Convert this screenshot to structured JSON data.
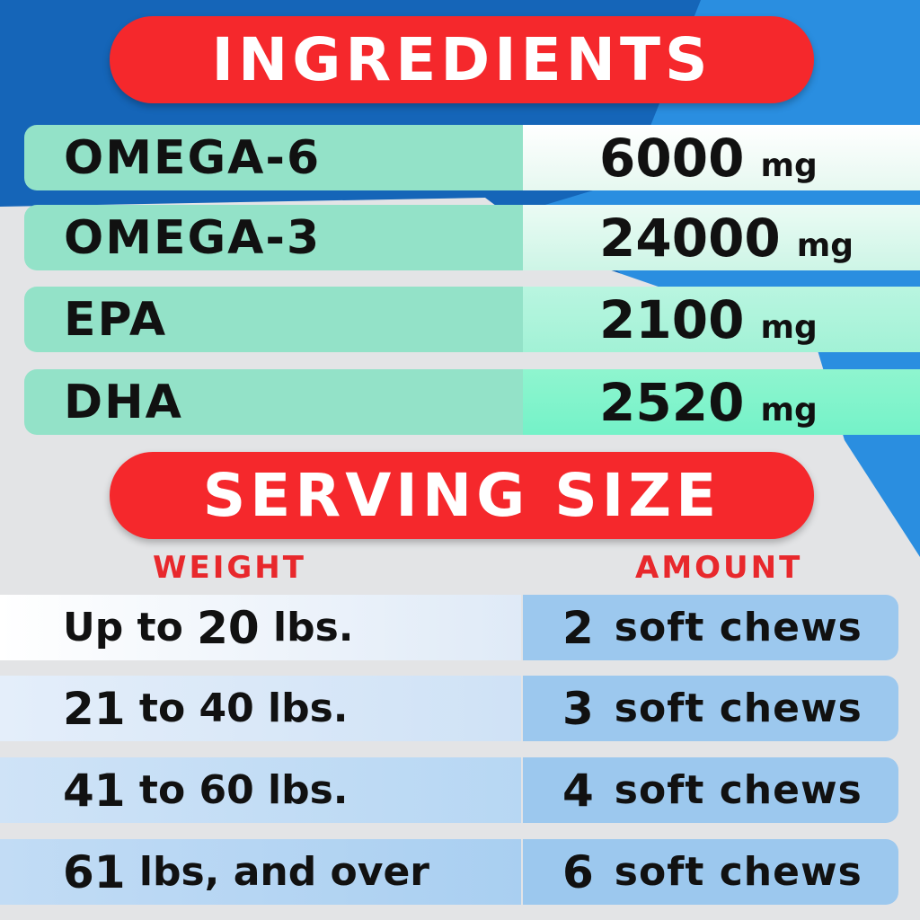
{
  "ingredients": {
    "title": "INGREDIENTS",
    "rows": [
      {
        "name": "OMEGA-6",
        "value": "6000",
        "unit": "mg"
      },
      {
        "name": "OMEGA-3",
        "value": "24000",
        "unit": "mg"
      },
      {
        "name": "EPA",
        "value": "2100",
        "unit": "mg"
      },
      {
        "name": "DHA",
        "value": "2520",
        "unit": "mg"
      }
    ]
  },
  "serving": {
    "title": "SERVING SIZE",
    "weight_header": "WEIGHT",
    "amount_header": "AMOUNT",
    "rows": [
      {
        "w_pre": "Up to ",
        "w_num": "20",
        "w_post": " lbs.",
        "a_num": "2",
        "a_text": "soft chews"
      },
      {
        "w_pre": "",
        "w_num": "21",
        "w_post": " to 40 lbs.",
        "a_num": "3",
        "a_text": "soft chews"
      },
      {
        "w_pre": "",
        "w_num": "41",
        "w_post": " to 60 lbs.",
        "a_num": "4",
        "a_text": "soft chews"
      },
      {
        "w_pre": "",
        "w_num": "61",
        "w_post": " lbs, and over",
        "a_num": "6",
        "a_text": "soft chews"
      }
    ]
  },
  "colors": {
    "red": "#f5282c",
    "blue": "#1565b8",
    "mint": "#93e2c8",
    "lightblue": "#9cc8ee"
  }
}
